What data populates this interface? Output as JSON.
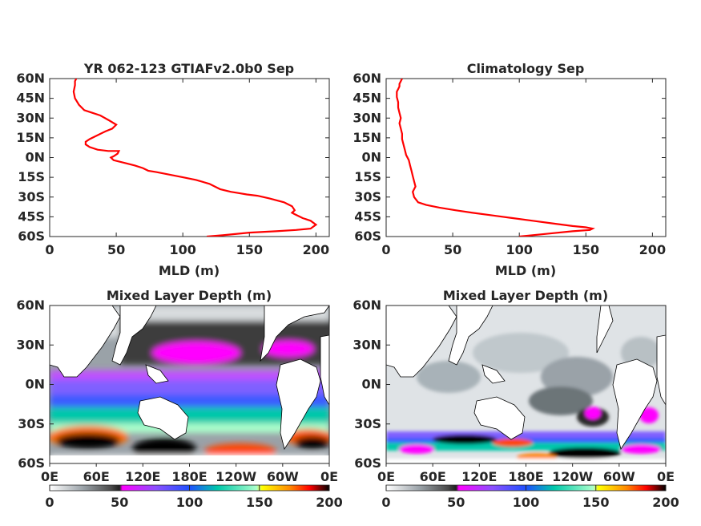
{
  "colors": {
    "profile_line": "#ff0000",
    "axes": "#262626",
    "colormap_stops": [
      "#ffffff",
      "#9aa2a8",
      "#4a4a4a",
      "#1e1e1e",
      "#ff00ff",
      "#8c50ff",
      "#1e50ff",
      "#00c8aa",
      "#aaffcc",
      "#ffff00",
      "#ff8800",
      "#ff0000",
      "#000000"
    ]
  },
  "chart_data": [
    {
      "type": "line",
      "title": "YR 062-123 GTIAFv2.0b0 Sep",
      "xlabel": "MLD (m)",
      "ylabel": "",
      "xlim": [
        0,
        210
      ],
      "ylim": [
        -60,
        60
      ],
      "xticks": [
        "0",
        "50",
        "100",
        "150",
        "200"
      ],
      "yticks": [
        "60N",
        "45N",
        "30N",
        "15N",
        "0N",
        "15S",
        "30S",
        "45S",
        "60S"
      ],
      "series": [
        {
          "x": [
            20,
            19,
            19,
            18,
            19,
            22,
            26,
            32,
            38,
            45,
            50,
            47,
            42,
            36,
            30,
            27,
            27,
            30,
            36,
            44,
            52,
            51,
            48,
            46,
            48,
            56,
            64,
            70,
            74,
            80,
            90,
            100,
            110,
            120,
            128,
            136,
            142,
            148,
            156,
            165,
            176,
            182,
            184,
            182,
            184,
            190,
            196,
            200,
            196,
            185,
            170,
            150,
            130,
            118
          ],
          "y": [
            60,
            58,
            55,
            50,
            45,
            40,
            36,
            34,
            32,
            28,
            25,
            22,
            20,
            17,
            14,
            12,
            10,
            8,
            6,
            5,
            5,
            3,
            1,
            0,
            -2,
            -4,
            -6,
            -8,
            -10,
            -11,
            -13,
            -15,
            -17,
            -20,
            -24,
            -26,
            -27,
            -28,
            -29,
            -31,
            -34,
            -37,
            -40,
            -42,
            -43,
            -46,
            -48,
            -51,
            -54,
            -55,
            -56,
            -57,
            -59,
            -60
          ]
        }
      ]
    },
    {
      "type": "line",
      "title": "Climatology Sep",
      "xlabel": "MLD (m)",
      "ylabel": "",
      "xlim": [
        0,
        210
      ],
      "ylim": [
        -60,
        60
      ],
      "xticks": [
        "0",
        "50",
        "100",
        "150",
        "200"
      ],
      "yticks": [
        "60N",
        "45N",
        "30N",
        "15N",
        "0N",
        "15S",
        "30S",
        "45S",
        "60S"
      ],
      "series": [
        {
          "x": [
            12,
            11,
            10,
            10,
            9,
            8,
            8,
            9,
            9,
            10,
            11,
            10,
            11,
            12,
            12,
            13,
            14,
            15,
            17,
            18,
            19,
            20,
            21,
            22,
            20,
            21,
            24,
            30,
            40,
            52,
            65,
            80,
            95,
            110,
            125,
            140,
            150,
            155,
            153,
            140,
            120,
            100
          ],
          "y": [
            60,
            58,
            56,
            54,
            52,
            50,
            46,
            42,
            38,
            34,
            30,
            26,
            22,
            18,
            14,
            10,
            6,
            2,
            -2,
            -6,
            -10,
            -14,
            -18,
            -22,
            -26,
            -30,
            -34,
            -36,
            -38,
            -40,
            -42,
            -44,
            -46,
            -48,
            -50,
            -52,
            -53,
            -54,
            -55,
            -56,
            -58,
            -60
          ]
        }
      ]
    },
    {
      "type": "heatmap",
      "title": "Mixed Layer Depth (m)",
      "xticks": [
        "0E",
        "60E",
        "120E",
        "180E",
        "120W",
        "60W",
        "0E"
      ],
      "yticks": [
        "60N",
        "30N",
        "0N",
        "30S",
        "60S"
      ],
      "colorbar_ticks": [
        "0",
        "50",
        "100",
        "150",
        "200"
      ],
      "colorbar_range": [
        0,
        200
      ]
    },
    {
      "type": "heatmap",
      "title": "Mixed Layer Depth (m)",
      "xticks": [
        "0E",
        "60E",
        "120E",
        "180E",
        "120W",
        "60W",
        "0E"
      ],
      "yticks": [
        "60N",
        "30N",
        "0N",
        "30S",
        "60S"
      ],
      "colorbar_ticks": [
        "0",
        "50",
        "100",
        "150",
        "200"
      ],
      "colorbar_range": [
        0,
        200
      ]
    }
  ]
}
